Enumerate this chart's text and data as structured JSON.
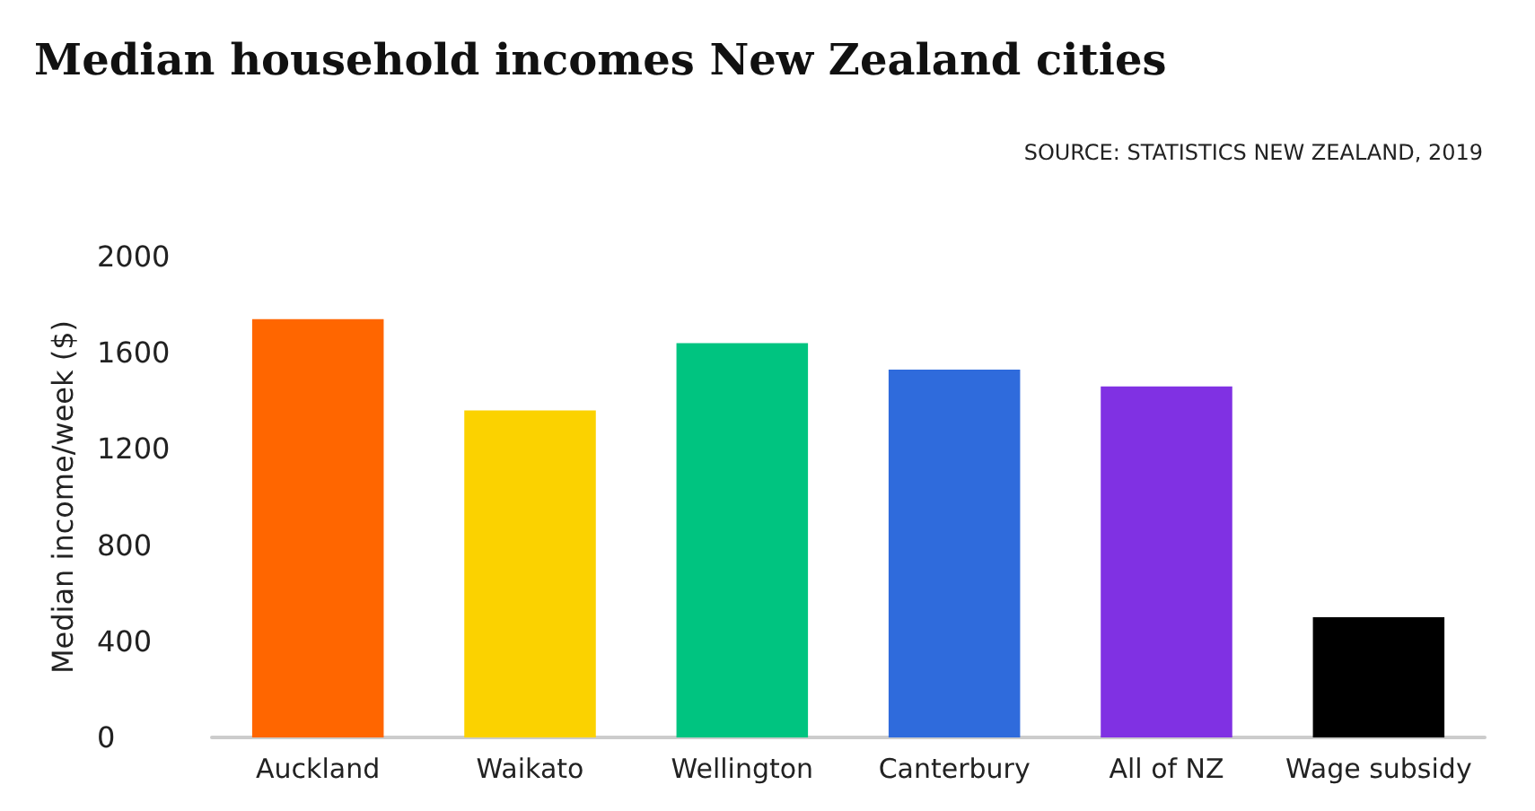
{
  "chart_data": {
    "type": "bar",
    "title": "Median household incomes New Zealand cities",
    "annotations": [
      "SOURCE: STATISTICS NEW ZEALAND, 2019"
    ],
    "ylabel": "Median income/week ($)",
    "categories": [
      "Auckland",
      "Waikato",
      "Wellington",
      "Canterbury",
      "All of NZ",
      "Wage subsidy"
    ],
    "values": [
      1740,
      1360,
      1640,
      1530,
      1460,
      500
    ],
    "colors": [
      "#ff6600",
      "#fbd200",
      "#00c480",
      "#2f6bdc",
      "#8031e3",
      "#000000"
    ],
    "ylim": [
      0,
      2000
    ],
    "yticks": [
      0,
      400,
      800,
      1200,
      1600,
      2000
    ],
    "grid": false
  }
}
